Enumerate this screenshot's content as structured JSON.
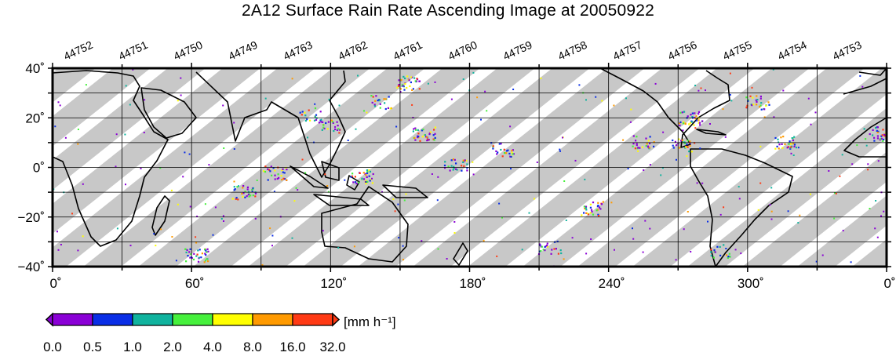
{
  "title": "2A12 Surface Rain Rate Ascending Image at 20050922",
  "orbits": [
    "44752",
    "44751",
    "44750",
    "44749",
    "44763",
    "44762",
    "44761",
    "44760",
    "44759",
    "44758",
    "44757",
    "44756",
    "44755",
    "44754",
    "44753"
  ],
  "lat_labels": [
    "40˚",
    "20˚",
    "0˚",
    "−20˚",
    "−40˚"
  ],
  "lon_labels": [
    "0˚",
    "60˚",
    "120˚",
    "180˚",
    "240˚",
    "300˚",
    "0˚"
  ],
  "colorbar": {
    "unit_label": "[mm h⁻¹]",
    "ticks": [
      "0.0",
      "0.5",
      "1.0",
      "2.0",
      "4.0",
      "8.0",
      "16.0",
      "32.0"
    ],
    "colors": [
      "#8a00d6",
      "#0a2ee6",
      "#10b39e",
      "#46f03c",
      "#ffff00",
      "#ff9a00",
      "#ff3a14"
    ]
  },
  "map": {
    "swath_color": "#c8c8c8",
    "grid": true,
    "lon_range": [
      0,
      360
    ],
    "lat_range": [
      -40,
      40
    ]
  }
}
